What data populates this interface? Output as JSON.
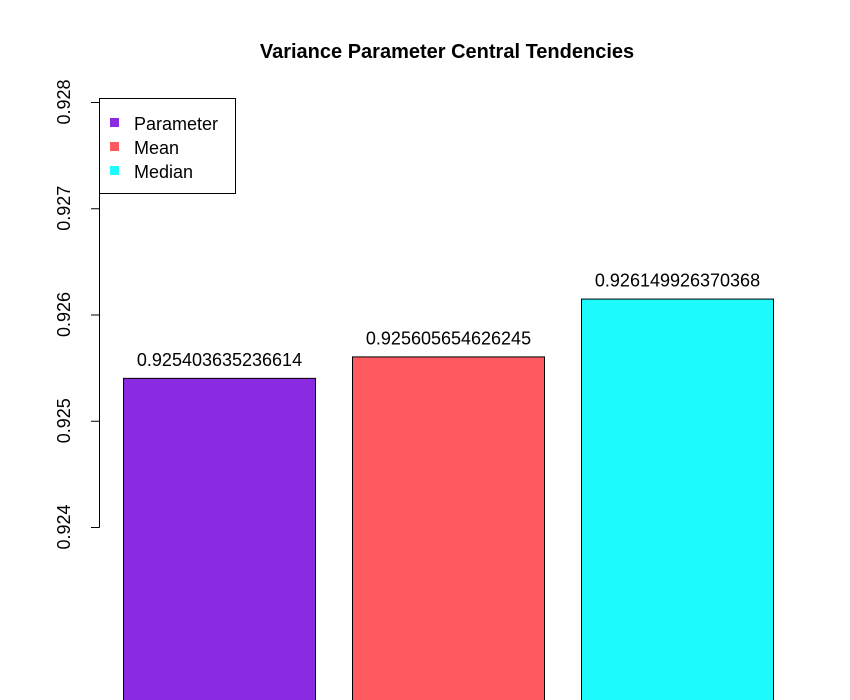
{
  "chart_data": {
    "type": "bar",
    "title": "Variance Parameter Central Tendencies",
    "xlabel": "",
    "ylabel": "",
    "categories": [
      "Parameter",
      "Mean",
      "Median"
    ],
    "values": [
      0.925403635236614,
      0.925605654626245,
      0.926149926370368
    ],
    "value_labels": [
      "0.925403635236614",
      "0.925605654626245",
      "0.926149926370368"
    ],
    "colors": [
      "#8a2be2",
      "#ff5a5f",
      "#1efbfd"
    ],
    "ylim": [
      0.924,
      0.928
    ],
    "yticks": [
      0.924,
      0.925,
      0.926,
      0.927,
      0.928
    ],
    "ytick_labels": [
      "0.924",
      "0.925",
      "0.926",
      "0.927",
      "0.928"
    ],
    "legend": {
      "position": "top-left",
      "entries": [
        "Parameter",
        "Mean",
        "Median"
      ]
    },
    "grid": false
  }
}
